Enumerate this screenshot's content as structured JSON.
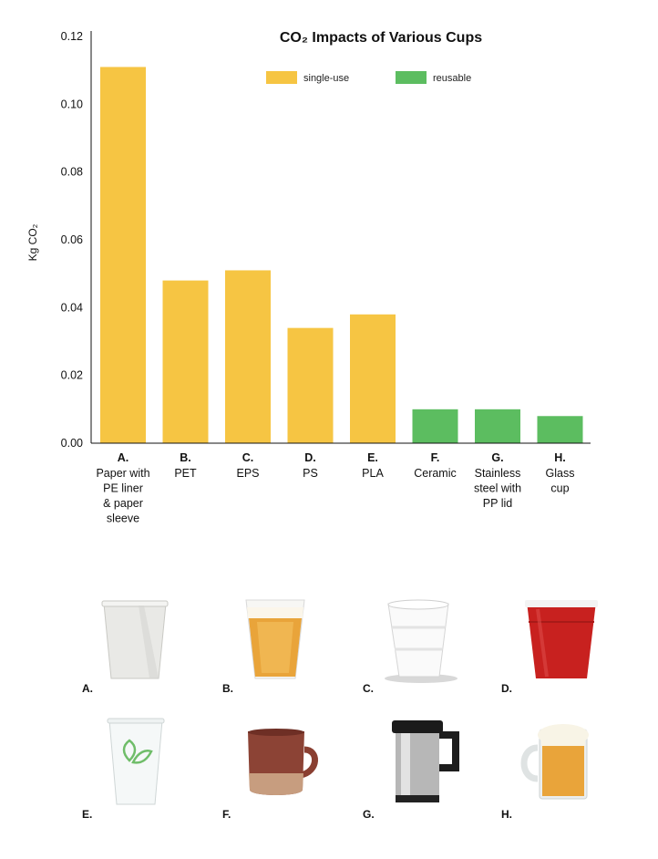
{
  "chart_data": {
    "type": "bar",
    "title": "CO₂ Impacts of Various Cups",
    "ylabel": "Kg CO₂",
    "xlabel": "",
    "ylim": [
      0,
      0.12
    ],
    "yticks": [
      "0.00",
      "0.02",
      "0.04",
      "0.06",
      "0.08",
      "0.10",
      "0.12"
    ],
    "grid": false,
    "legend_position": "top",
    "legend": [
      {
        "name": "single-use",
        "color": "#F6C543"
      },
      {
        "name": "reusable",
        "color": "#5CBD60"
      }
    ],
    "categories": [
      {
        "letter": "A.",
        "lines": [
          "Paper with",
          "PE liner",
          "& paper",
          "sleeve"
        ],
        "value": 0.111,
        "group": "single-use"
      },
      {
        "letter": "B.",
        "lines": [
          "PET"
        ],
        "value": 0.048,
        "group": "single-use"
      },
      {
        "letter": "C.",
        "lines": [
          "EPS"
        ],
        "value": 0.051,
        "group": "single-use"
      },
      {
        "letter": "D.",
        "lines": [
          "PS"
        ],
        "value": 0.034,
        "group": "single-use"
      },
      {
        "letter": "E.",
        "lines": [
          "PLA"
        ],
        "value": 0.038,
        "group": "single-use"
      },
      {
        "letter": "F.",
        "lines": [
          "Ceramic"
        ],
        "value": 0.01,
        "group": "reusable"
      },
      {
        "letter": "G.",
        "lines": [
          "Stainless",
          "steel with",
          "PP lid"
        ],
        "value": 0.01,
        "group": "reusable"
      },
      {
        "letter": "H.",
        "lines": [
          "Glass",
          "cup"
        ],
        "value": 0.008,
        "group": "reusable"
      }
    ]
  },
  "photos": [
    {
      "label": "A.",
      "icon": "paper-cup-icon"
    },
    {
      "label": "B.",
      "icon": "pet-beer-cup-icon"
    },
    {
      "label": "C.",
      "icon": "foam-cup-icon"
    },
    {
      "label": "D.",
      "icon": "red-plastic-cup-icon"
    },
    {
      "label": "E.",
      "icon": "pla-clear-cup-icon"
    },
    {
      "label": "F.",
      "icon": "ceramic-mug-icon"
    },
    {
      "label": "G.",
      "icon": "steel-travel-mug-icon"
    },
    {
      "label": "H.",
      "icon": "glass-beer-mug-icon"
    }
  ]
}
